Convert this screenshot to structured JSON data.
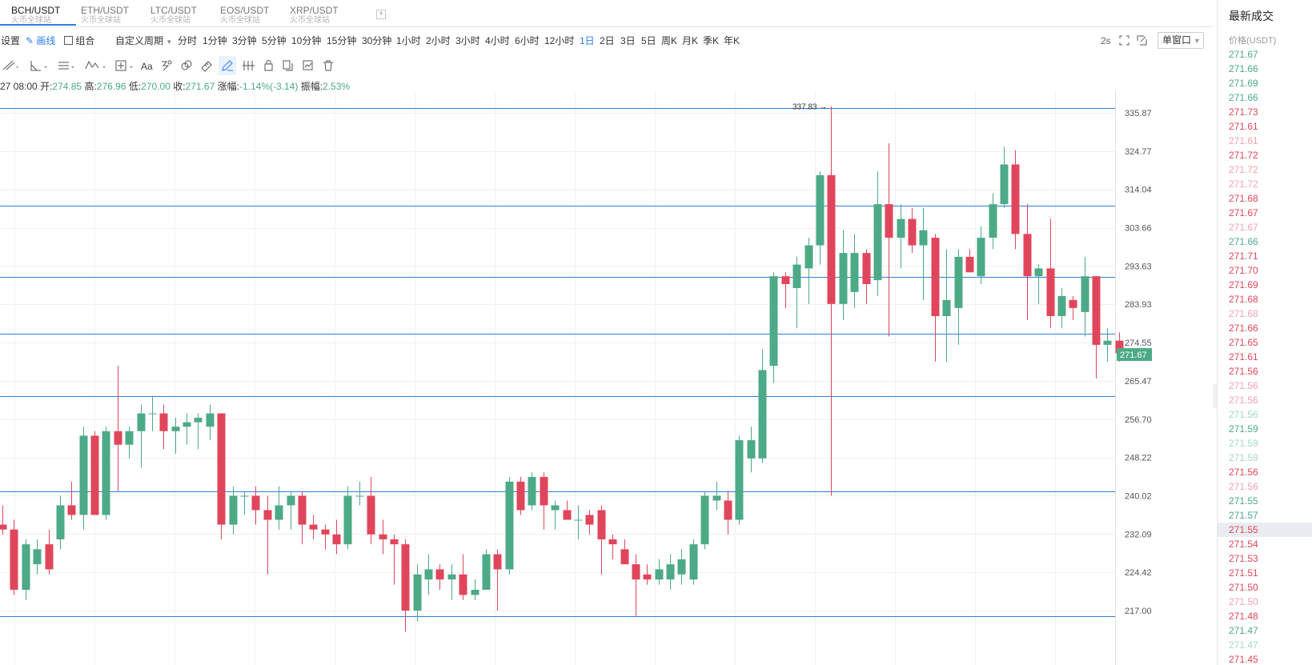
{
  "tabs": [
    {
      "pair": "BCH/USDT",
      "exchange": "火币全球站",
      "active": true
    },
    {
      "pair": "ETH/USDT",
      "exchange": "火币全球站",
      "active": false
    },
    {
      "pair": "LTC/USDT",
      "exchange": "火币全球站",
      "active": false
    },
    {
      "pair": "EOS/USDT",
      "exchange": "火币全球站",
      "active": false
    },
    {
      "pair": "XRP/USDT",
      "exchange": "火币全球站",
      "active": false
    }
  ],
  "toolbar": {
    "settings": "设置",
    "draw": "画线",
    "combine": "组合",
    "custom_period": "自定义周期",
    "periods": [
      "分时",
      "1分钟",
      "3分钟",
      "5分钟",
      "10分钟",
      "15分钟",
      "30分钟",
      "1小时",
      "2小时",
      "3小时",
      "4小时",
      "6小时",
      "12小时",
      "1日",
      "2日",
      "3日",
      "5日",
      "周K",
      "月K",
      "季K",
      "年K"
    ],
    "active_period": "1日",
    "refresh": "2s",
    "window_mode": "单窗口"
  },
  "ohlc": {
    "time": "27 08:00",
    "open_label": "开:",
    "open": "274.85",
    "high_label": "高:",
    "high": "276.96",
    "low_label": "低:",
    "low": "270.00",
    "close_label": "收:",
    "close": "271.67",
    "change_label": "涨幅:",
    "change": "-1.14%(-3.14)",
    "amplitude_label": "振幅:",
    "amplitude": "2.53%"
  },
  "trades": {
    "title": "最新成交",
    "header": "价格(USDT)",
    "rows": [
      {
        "price": "271.67",
        "side": "buy"
      },
      {
        "price": "271.66",
        "side": "buy"
      },
      {
        "price": "271.69",
        "side": "buy"
      },
      {
        "price": "271.66",
        "side": "buy"
      },
      {
        "price": "271.73",
        "side": "sell"
      },
      {
        "price": "271.61",
        "side": "sell"
      },
      {
        "price": "271.61",
        "side": "sell-faded"
      },
      {
        "price": "271.72",
        "side": "sell"
      },
      {
        "price": "271.72",
        "side": "sell-faded"
      },
      {
        "price": "271.72",
        "side": "sell-faded"
      },
      {
        "price": "271.68",
        "side": "sell"
      },
      {
        "price": "271.67",
        "side": "sell"
      },
      {
        "price": "271.67",
        "side": "sell-faded"
      },
      {
        "price": "271.66",
        "side": "buy"
      },
      {
        "price": "271.71",
        "side": "sell"
      },
      {
        "price": "271.70",
        "side": "sell"
      },
      {
        "price": "271.69",
        "side": "sell"
      },
      {
        "price": "271.68",
        "side": "sell"
      },
      {
        "price": "271.68",
        "side": "sell-faded"
      },
      {
        "price": "271.66",
        "side": "sell"
      },
      {
        "price": "271.65",
        "side": "sell"
      },
      {
        "price": "271.61",
        "side": "sell"
      },
      {
        "price": "271.56",
        "side": "sell"
      },
      {
        "price": "271.56",
        "side": "sell-faded"
      },
      {
        "price": "271.56",
        "side": "sell-faded"
      },
      {
        "price": "271.56",
        "side": "buy-faded"
      },
      {
        "price": "271.59",
        "side": "buy"
      },
      {
        "price": "271.59",
        "side": "buy-faded"
      },
      {
        "price": "271.59",
        "side": "buy-faded"
      },
      {
        "price": "271.56",
        "side": "sell"
      },
      {
        "price": "271.56",
        "side": "sell-faded"
      },
      {
        "price": "271.55",
        "side": "buy"
      },
      {
        "price": "271.57",
        "side": "buy"
      },
      {
        "price": "271.55",
        "side": "sell",
        "highlight": true
      },
      {
        "price": "271.54",
        "side": "sell"
      },
      {
        "price": "271.53",
        "side": "sell"
      },
      {
        "price": "271.51",
        "side": "sell"
      },
      {
        "price": "271.50",
        "side": "sell"
      },
      {
        "price": "271.50",
        "side": "sell-faded"
      },
      {
        "price": "271.48",
        "side": "sell"
      },
      {
        "price": "271.47",
        "side": "buy"
      },
      {
        "price": "271.47",
        "side": "buy-faded"
      },
      {
        "price": "271.45",
        "side": "sell"
      }
    ]
  },
  "colors": {
    "up": "#4daa86",
    "down": "#e0465b",
    "up_faded": "#a7d7c2",
    "down_faded": "#f0a3ae",
    "accent": "#2b7de9",
    "hline": "#2f7fd6"
  },
  "icons": {
    "settings": "gear-icon",
    "draw": "pen-icon",
    "combine": "layout-icon",
    "fullscreen": "fullscreen-icon",
    "screenshot": "screenshot-icon",
    "tools": [
      "trend-line-icon",
      "angle-icon",
      "horizontal-lines-icon",
      "wave-icon",
      "crosshair-icon",
      "text-icon",
      "pattern-icon",
      "magnet-icon",
      "ruler-icon",
      "pencil-icon",
      "measure-icon",
      "lock-icon",
      "copy-icon",
      "hide-icon",
      "trash-icon"
    ]
  },
  "chart_data": {
    "type": "candlestick",
    "y_ticks": [
      335.87,
      324.77,
      314.04,
      303.66,
      293.63,
      283.93,
      274.55,
      265.47,
      256.7,
      248.22,
      240.02,
      232.09,
      224.42,
      217.0
    ],
    "y_scale": "log",
    "grid": true,
    "last_price": 271.67,
    "max_label": "337.83",
    "horizontal_lines": [
      337.3,
      309.7,
      290.8,
      276.6,
      262.0,
      240.9,
      216.0
    ],
    "candles": [
      {
        "o": 234,
        "h": 238,
        "l": 232,
        "c": 233
      },
      {
        "o": 233,
        "h": 235,
        "l": 220,
        "c": 221
      },
      {
        "o": 221,
        "h": 231,
        "l": 219,
        "c": 230
      },
      {
        "o": 226,
        "h": 231,
        "l": 224,
        "c": 229
      },
      {
        "o": 230,
        "h": 233,
        "l": 224,
        "c": 225
      },
      {
        "o": 231,
        "h": 240,
        "l": 229,
        "c": 238
      },
      {
        "o": 238,
        "h": 243,
        "l": 235,
        "c": 236
      },
      {
        "o": 236,
        "h": 255,
        "l": 233,
        "c": 253
      },
      {
        "o": 253,
        "h": 254,
        "l": 236,
        "c": 236
      },
      {
        "o": 236,
        "h": 255,
        "l": 235,
        "c": 254
      },
      {
        "o": 254,
        "h": 269,
        "l": 241,
        "c": 251
      },
      {
        "o": 251,
        "h": 255,
        "l": 248,
        "c": 254
      },
      {
        "o": 254,
        "h": 260,
        "l": 246,
        "c": 258
      },
      {
        "o": 258,
        "h": 262,
        "l": 254,
        "c": 258
      },
      {
        "o": 258,
        "h": 260,
        "l": 250,
        "c": 254
      },
      {
        "o": 254,
        "h": 257,
        "l": 249,
        "c": 255
      },
      {
        "o": 255,
        "h": 258,
        "l": 251,
        "c": 256
      },
      {
        "o": 256,
        "h": 258,
        "l": 250,
        "c": 257
      },
      {
        "o": 255,
        "h": 260,
        "l": 252,
        "c": 258
      },
      {
        "o": 258,
        "h": 258,
        "l": 231,
        "c": 234
      },
      {
        "o": 234,
        "h": 242,
        "l": 232,
        "c": 240
      },
      {
        "o": 240,
        "h": 241,
        "l": 236,
        "c": 240
      },
      {
        "o": 240,
        "h": 242,
        "l": 234,
        "c": 237
      },
      {
        "o": 237,
        "h": 240,
        "l": 224,
        "c": 235
      },
      {
        "o": 235,
        "h": 242,
        "l": 233,
        "c": 238
      },
      {
        "o": 238,
        "h": 241,
        "l": 233,
        "c": 240
      },
      {
        "o": 240,
        "h": 241,
        "l": 230,
        "c": 234
      },
      {
        "o": 234,
        "h": 236,
        "l": 231,
        "c": 233
      },
      {
        "o": 233,
        "h": 234,
        "l": 229,
        "c": 232
      },
      {
        "o": 232,
        "h": 235,
        "l": 228,
        "c": 230
      },
      {
        "o": 230,
        "h": 242,
        "l": 229,
        "c": 240
      },
      {
        "o": 240,
        "h": 243,
        "l": 238,
        "c": 240
      },
      {
        "o": 240,
        "h": 244,
        "l": 230,
        "c": 232
      },
      {
        "o": 232,
        "h": 235,
        "l": 228,
        "c": 231
      },
      {
        "o": 231,
        "h": 232,
        "l": 222,
        "c": 230
      },
      {
        "o": 230,
        "h": 231,
        "l": 213,
        "c": 217
      },
      {
        "o": 217,
        "h": 226,
        "l": 215,
        "c": 224
      },
      {
        "o": 223,
        "h": 228,
        "l": 220,
        "c": 225
      },
      {
        "o": 225,
        "h": 226,
        "l": 221,
        "c": 223
      },
      {
        "o": 223,
        "h": 226,
        "l": 219,
        "c": 224
      },
      {
        "o": 224,
        "h": 228,
        "l": 219,
        "c": 220
      },
      {
        "o": 220,
        "h": 223,
        "l": 219,
        "c": 221
      },
      {
        "o": 221,
        "h": 229,
        "l": 221,
        "c": 228
      },
      {
        "o": 228,
        "h": 229,
        "l": 217,
        "c": 225
      },
      {
        "o": 225,
        "h": 244,
        "l": 224,
        "c": 243
      },
      {
        "o": 243,
        "h": 244,
        "l": 236,
        "c": 237
      },
      {
        "o": 238,
        "h": 245,
        "l": 237,
        "c": 244
      },
      {
        "o": 244,
        "h": 245,
        "l": 233,
        "c": 238
      },
      {
        "o": 237,
        "h": 239,
        "l": 233,
        "c": 238
      },
      {
        "o": 237,
        "h": 239,
        "l": 235,
        "c": 235
      },
      {
        "o": 235,
        "h": 238,
        "l": 231,
        "c": 235
      },
      {
        "o": 236,
        "h": 237,
        "l": 232,
        "c": 234
      },
      {
        "o": 237,
        "h": 238,
        "l": 224,
        "c": 231
      },
      {
        "o": 231,
        "h": 232,
        "l": 227,
        "c": 230
      },
      {
        "o": 229,
        "h": 231,
        "l": 226,
        "c": 226
      },
      {
        "o": 226,
        "h": 228,
        "l": 216,
        "c": 223
      },
      {
        "o": 224,
        "h": 226,
        "l": 222,
        "c": 223
      },
      {
        "o": 223,
        "h": 227,
        "l": 222,
        "c": 225
      },
      {
        "o": 223,
        "h": 228,
        "l": 221,
        "c": 226
      },
      {
        "o": 224,
        "h": 229,
        "l": 222,
        "c": 227
      },
      {
        "o": 223,
        "h": 231,
        "l": 222,
        "c": 230
      },
      {
        "o": 230,
        "h": 241,
        "l": 229,
        "c": 240
      },
      {
        "o": 239,
        "h": 243,
        "l": 237,
        "c": 240
      },
      {
        "o": 239,
        "h": 241,
        "l": 232,
        "c": 235
      },
      {
        "o": 235,
        "h": 253,
        "l": 234,
        "c": 252
      },
      {
        "o": 248,
        "h": 255,
        "l": 245,
        "c": 252
      },
      {
        "o": 248,
        "h": 273,
        "l": 247,
        "c": 268
      },
      {
        "o": 269,
        "h": 292,
        "l": 265,
        "c": 291
      },
      {
        "o": 291,
        "h": 292,
        "l": 283,
        "c": 289
      },
      {
        "o": 288,
        "h": 296,
        "l": 278,
        "c": 294
      },
      {
        "o": 293,
        "h": 301,
        "l": 284,
        "c": 299
      },
      {
        "o": 299,
        "h": 319,
        "l": 294,
        "c": 318
      },
      {
        "o": 318,
        "h": 337.83,
        "l": 240,
        "c": 284
      },
      {
        "o": 284,
        "h": 303,
        "l": 280,
        "c": 297
      },
      {
        "o": 287,
        "h": 302,
        "l": 283,
        "c": 297
      },
      {
        "o": 297,
        "h": 298,
        "l": 284,
        "c": 289
      },
      {
        "o": 290,
        "h": 319,
        "l": 286,
        "c": 310
      },
      {
        "o": 310,
        "h": 327,
        "l": 276,
        "c": 301
      },
      {
        "o": 301,
        "h": 310,
        "l": 293,
        "c": 306
      },
      {
        "o": 306,
        "h": 309,
        "l": 297,
        "c": 299
      },
      {
        "o": 299,
        "h": 309,
        "l": 285,
        "c": 303
      },
      {
        "o": 301,
        "h": 302,
        "l": 270,
        "c": 281
      },
      {
        "o": 281,
        "h": 298,
        "l": 270,
        "c": 285
      },
      {
        "o": 283,
        "h": 298,
        "l": 274,
        "c": 296
      },
      {
        "o": 296,
        "h": 298,
        "l": 293,
        "c": 292
      },
      {
        "o": 291,
        "h": 304,
        "l": 289,
        "c": 301
      },
      {
        "o": 301,
        "h": 313,
        "l": 298,
        "c": 310
      },
      {
        "o": 310,
        "h": 326,
        "l": 309,
        "c": 321
      },
      {
        "o": 321,
        "h": 325,
        "l": 298,
        "c": 302
      },
      {
        "o": 302,
        "h": 310,
        "l": 280,
        "c": 291
      },
      {
        "o": 291,
        "h": 294,
        "l": 284,
        "c": 293
      },
      {
        "o": 293,
        "h": 306,
        "l": 278,
        "c": 281
      },
      {
        "o": 281,
        "h": 288,
        "l": 278,
        "c": 286
      },
      {
        "o": 285,
        "h": 286,
        "l": 280,
        "c": 283
      },
      {
        "o": 282,
        "h": 296,
        "l": 276,
        "c": 291
      },
      {
        "o": 291,
        "h": 291,
        "l": 266,
        "c": 274
      },
      {
        "o": 274,
        "h": 278,
        "l": 270,
        "c": 275
      },
      {
        "o": 275,
        "h": 277,
        "l": 270,
        "c": 272
      }
    ]
  }
}
